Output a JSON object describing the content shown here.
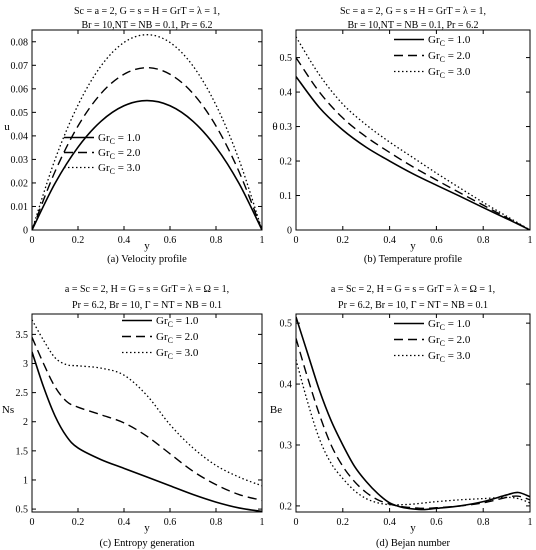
{
  "chart_data": [
    {
      "type": "line",
      "panel_label": "(a) Velocity profile",
      "params_line1": "Sc = a = 2, G = s = H = GrT = λ = 1,",
      "params_line2": "Br = 10,NT = NB = 0.1, Pr = 6.2",
      "xlabel": "y",
      "ylabel": "u",
      "xlim": [
        0,
        1
      ],
      "ylim": [
        0,
        0.085
      ],
      "xticks": [
        0,
        0.2,
        0.4,
        0.6,
        0.8,
        1
      ],
      "xtick_labels": [
        "0",
        "0.2",
        "0.4",
        "0.6",
        "0.8",
        "1"
      ],
      "yticks": [
        0,
        0.01,
        0.02,
        0.03,
        0.04,
        0.05,
        0.06,
        0.07,
        0.08
      ],
      "ytick_labels": [
        "0",
        "0.01",
        "0.02",
        "0.03",
        "0.04",
        "0.05",
        "0.06",
        "0.07",
        "0.08"
      ],
      "legend": "mid-lower",
      "x": [
        0,
        0.1,
        0.2,
        0.3,
        0.4,
        0.5,
        0.6,
        0.7,
        0.8,
        0.9,
        1
      ],
      "series": [
        {
          "name": "Gr_C = 1.0",
          "label_base": "Gr",
          "label_sub": "C",
          "label_rest": " = 1.0",
          "dash": "solid",
          "values": [
            0,
            0.0198,
            0.0352,
            0.0462,
            0.0528,
            0.055,
            0.0528,
            0.0462,
            0.0352,
            0.0198,
            0
          ]
        },
        {
          "name": "Gr_C = 2.0",
          "label_base": "Gr",
          "label_sub": "C",
          "label_rest": " = 2.0",
          "dash": "dashed",
          "values": [
            0,
            0.0248,
            0.0442,
            0.058,
            0.0662,
            0.069,
            0.0662,
            0.058,
            0.0442,
            0.0248,
            0
          ]
        },
        {
          "name": "Gr_C = 3.0",
          "label_base": "Gr",
          "label_sub": "C",
          "label_rest": " = 3.0",
          "dash": "dotted",
          "values": [
            0,
            0.0299,
            0.0531,
            0.0697,
            0.0797,
            0.083,
            0.0797,
            0.0697,
            0.0531,
            0.0299,
            0
          ]
        }
      ]
    },
    {
      "type": "line",
      "panel_label": "(b) Temperature profile",
      "params_line1": "Sc = a = 2, G = s = H = GrT = λ = 1,",
      "params_line2": "Br = 10,NT = NB = 0.1, Pr = 6.2",
      "xlabel": "y",
      "ylabel": "θ",
      "xlim": [
        0,
        1
      ],
      "ylim": [
        0,
        0.58
      ],
      "xticks": [
        0,
        0.2,
        0.4,
        0.6,
        0.8,
        1
      ],
      "xtick_labels": [
        "0",
        "0.2",
        "0.4",
        "0.6",
        "0.8",
        "1"
      ],
      "yticks": [
        0,
        0.1,
        0.2,
        0.3,
        0.4,
        0.5
      ],
      "ytick_labels": [
        "0",
        "0.1",
        "0.2",
        "0.3",
        "0.4",
        "0.5"
      ],
      "legend": "top-right",
      "x": [
        0,
        0.1,
        0.2,
        0.3,
        0.4,
        0.5,
        0.6,
        0.7,
        0.8,
        0.9,
        1
      ],
      "series": [
        {
          "name": "Gr_C = 1.0",
          "label_base": "Gr",
          "label_sub": "C",
          "label_rest": " = 1.0",
          "dash": "solid",
          "values": [
            0.445,
            0.355,
            0.29,
            0.24,
            0.2,
            0.163,
            0.13,
            0.098,
            0.065,
            0.033,
            0
          ]
        },
        {
          "name": "Gr_C = 2.0",
          "label_base": "Gr",
          "label_sub": "C",
          "label_rest": " = 2.0",
          "dash": "dashed",
          "values": [
            0.5,
            0.4,
            0.325,
            0.27,
            0.225,
            0.183,
            0.145,
            0.108,
            0.072,
            0.036,
            0
          ]
        },
        {
          "name": "Gr_C = 3.0",
          "label_base": "Gr",
          "label_sub": "C",
          "label_rest": " = 3.0",
          "dash": "dotted",
          "values": [
            0.56,
            0.45,
            0.365,
            0.305,
            0.255,
            0.21,
            0.165,
            0.122,
            0.08,
            0.04,
            0
          ]
        }
      ]
    },
    {
      "type": "line",
      "panel_label": "(c) Entropy generation",
      "params_line1": "a = Sc = 2, H = G = s = GrT = λ = Ω = 1,",
      "params_line2": "Pr = 6.2, Br = 10, Γ = NT = NB = 0.1",
      "xlabel": "y",
      "ylabel": "Ns",
      "xlim": [
        0,
        1
      ],
      "ylim": [
        0.45,
        3.85
      ],
      "xticks": [
        0,
        0.2,
        0.4,
        0.6,
        0.8,
        1
      ],
      "xtick_labels": [
        "0",
        "0.2",
        "0.4",
        "0.6",
        "0.8",
        "1"
      ],
      "yticks": [
        0.5,
        1,
        1.5,
        2,
        2.5,
        3,
        3.5
      ],
      "ytick_labels": [
        "0.5",
        "1",
        "1.5",
        "2",
        "2.5",
        "3",
        "3.5"
      ],
      "legend": "top-right",
      "x": [
        0,
        0.05,
        0.1,
        0.15,
        0.2,
        0.3,
        0.4,
        0.5,
        0.6,
        0.7,
        0.8,
        0.9,
        1
      ],
      "series": [
        {
          "name": "Gr_C = 1.0",
          "label_base": "Gr",
          "label_sub": "C",
          "label_rest": " = 1.0",
          "dash": "solid",
          "values": [
            3.2,
            2.6,
            2.1,
            1.75,
            1.55,
            1.35,
            1.2,
            1.05,
            0.9,
            0.75,
            0.62,
            0.52,
            0.46
          ]
        },
        {
          "name": "Gr_C = 2.0",
          "label_base": "Gr",
          "label_sub": "C",
          "label_rest": " = 2.0",
          "dash": "dashed",
          "values": [
            3.45,
            3.0,
            2.6,
            2.35,
            2.25,
            2.12,
            1.98,
            1.75,
            1.45,
            1.15,
            0.92,
            0.75,
            0.65
          ]
        },
        {
          "name": "Gr_C = 3.0",
          "label_base": "Gr",
          "label_sub": "C",
          "label_rest": " = 3.0",
          "dash": "dotted",
          "values": [
            3.75,
            3.4,
            3.1,
            2.98,
            2.96,
            2.92,
            2.8,
            2.45,
            1.95,
            1.55,
            1.25,
            1.05,
            0.9
          ]
        }
      ]
    },
    {
      "type": "line",
      "panel_label": "(d) Bejan number",
      "params_line1": "a = Sc = 2, H = G = s = GrT = λ = Ω = 1,",
      "params_line2": "Pr = 6.2, Br = 10, Γ = NT = NB = 0.1",
      "xlabel": "y",
      "ylabel": "Be",
      "xlim": [
        0,
        1
      ],
      "ylim": [
        0.19,
        0.515
      ],
      "xticks": [
        0,
        0.2,
        0.4,
        0.6,
        0.8,
        1
      ],
      "xtick_labels": [
        "0",
        "0.2",
        "0.4",
        "0.6",
        "0.8",
        "1"
      ],
      "yticks": [
        0.2,
        0.3,
        0.4,
        0.5
      ],
      "ytick_labels": [
        "0.2",
        "0.3",
        "0.4",
        "0.5"
      ],
      "legend": "top-right",
      "x": [
        0,
        0.05,
        0.1,
        0.15,
        0.2,
        0.25,
        0.3,
        0.35,
        0.4,
        0.45,
        0.5,
        0.55,
        0.6,
        0.7,
        0.8,
        0.9,
        0.95,
        1
      ],
      "series": [
        {
          "name": "Gr_C = 1.0",
          "label_base": "Gr",
          "label_sub": "C",
          "label_rest": " = 1.0",
          "dash": "solid",
          "values": [
            0.51,
            0.45,
            0.39,
            0.34,
            0.3,
            0.265,
            0.24,
            0.22,
            0.205,
            0.198,
            0.195,
            0.194,
            0.196,
            0.2,
            0.207,
            0.218,
            0.222,
            0.215
          ]
        },
        {
          "name": "Gr_C = 2.0",
          "label_base": "Gr",
          "label_sub": "C",
          "label_rest": " = 2.0",
          "dash": "dashed",
          "values": [
            0.475,
            0.41,
            0.35,
            0.3,
            0.265,
            0.24,
            0.222,
            0.21,
            0.203,
            0.199,
            0.197,
            0.196,
            0.197,
            0.2,
            0.205,
            0.214,
            0.216,
            0.21
          ]
        },
        {
          "name": "Gr_C = 3.0",
          "label_base": "Gr",
          "label_sub": "C",
          "label_rest": " = 3.0",
          "dash": "dotted",
          "values": [
            0.44,
            0.37,
            0.31,
            0.27,
            0.245,
            0.225,
            0.212,
            0.205,
            0.202,
            0.202,
            0.203,
            0.205,
            0.207,
            0.21,
            0.212,
            0.214,
            0.212,
            0.205
          ]
        }
      ]
    }
  ]
}
